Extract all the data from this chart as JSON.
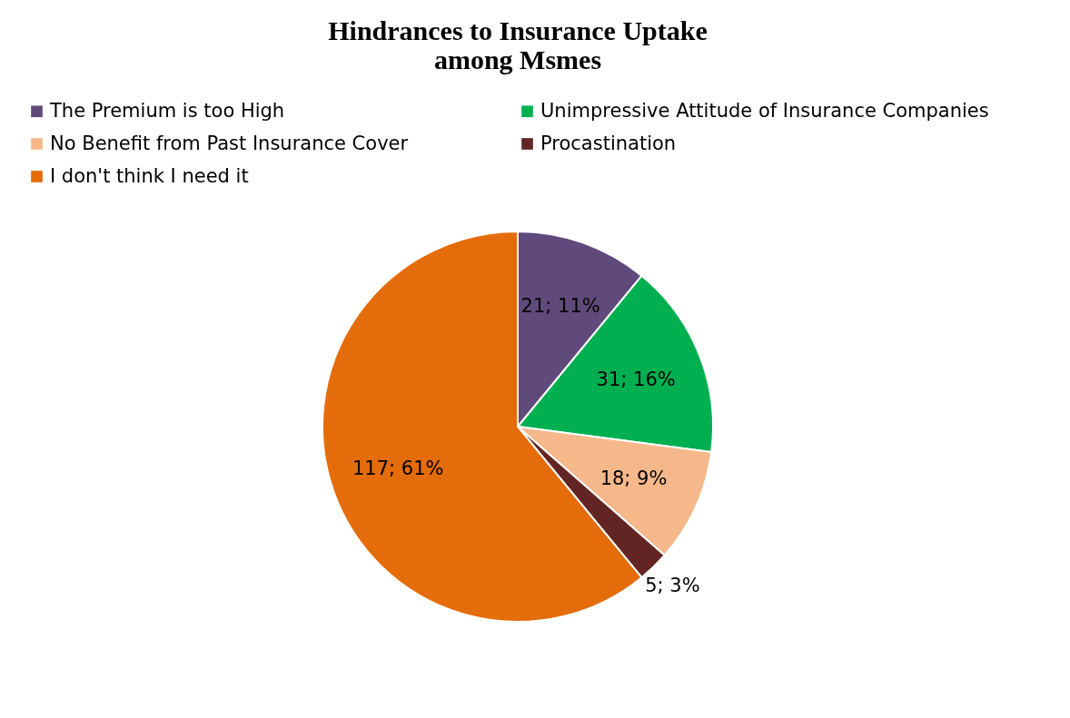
{
  "chart_data": {
    "type": "pie",
    "title": "Hindrances to Insurance Uptake\namong Msmes",
    "categories": [
      "The Premium is too High",
      "Unimpressive Attitude of Insurance Companies",
      "No Benefit from Past Insurance Cover",
      "Procastination",
      "I don't think I need it"
    ],
    "values": [
      21,
      31,
      18,
      5,
      117
    ],
    "colors": [
      "#604a7b",
      "#00b050",
      "#f5b88a",
      "#632523",
      "#e46c0a"
    ],
    "value_labels": [
      "21; 11%",
      "31; 16%",
      "18; 9%",
      "5; 3%",
      "117; 61%"
    ],
    "legend": "top"
  }
}
